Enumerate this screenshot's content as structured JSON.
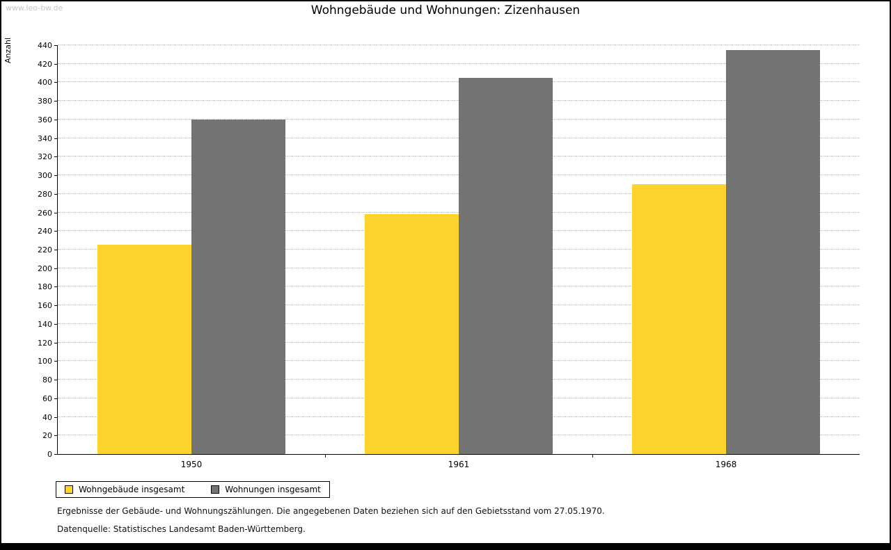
{
  "watermark": "www.leo-bw.de",
  "title": "Wohngebäude und Wohnungen: Zizenhausen",
  "chart_data": {
    "type": "bar",
    "title": "Wohngebäude und Wohnungen: Zizenhausen",
    "categories": [
      "1950",
      "1961",
      "1968"
    ],
    "series": [
      {
        "name": "Wohngebäude insgesamt",
        "color": "#fcd42d",
        "values": [
          225,
          258,
          290
        ]
      },
      {
        "name": "Wohnungen insgesamt",
        "color": "#737373",
        "values": [
          360,
          405,
          435
        ]
      }
    ],
    "xlabel": "",
    "ylabel": "Anzahl",
    "ylim": [
      0,
      440
    ],
    "ytick_step": 20,
    "grid": true,
    "legend_position": "bottom-left"
  },
  "footer": {
    "line1": "Ergebnisse der Gebäude- und Wohnungszählungen. Die angegebenen Daten beziehen sich auf den Gebietsstand vom 27.05.1970.",
    "line2": "Datenquelle: Statistisches Landesamt Baden-Württemberg."
  }
}
